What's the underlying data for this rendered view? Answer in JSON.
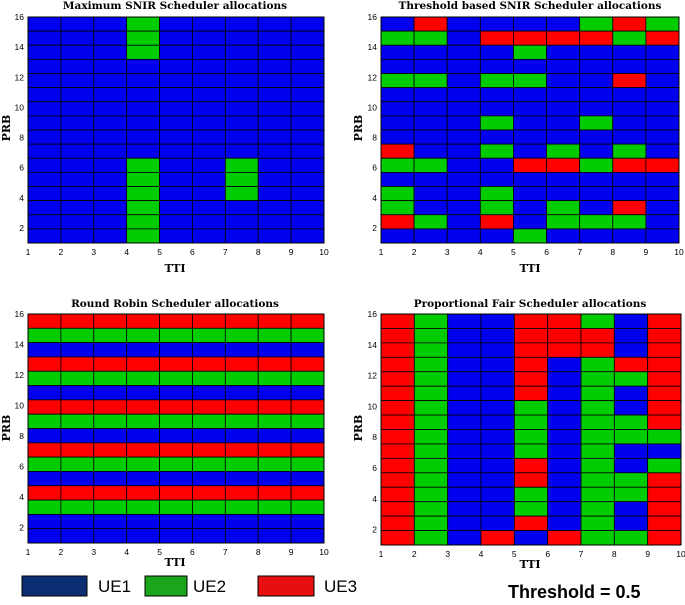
{
  "colors": {
    "UE1": "#0000ee",
    "UE2": "#00cc00",
    "UE3": "#ff0000",
    "grid": "#000000"
  },
  "legend": [
    {
      "label": "UE1",
      "swatch_color": "#0b2e73"
    },
    {
      "label": "UE2",
      "swatch_color": "#1aa51a"
    },
    {
      "label": "UE3",
      "swatch_color": "#e61010"
    }
  ],
  "threshold_text": "Threshold = 0.5",
  "chart_data": [
    {
      "type": "heatmap",
      "title": "Maximum SNIR Scheduler allocations",
      "xlabel": "TTI",
      "ylabel": "PRB",
      "xlim": [
        1,
        10
      ],
      "ylim": [
        1,
        16
      ],
      "xticks": [
        "1",
        "2",
        "3",
        "4",
        "5",
        "6",
        "7",
        "8",
        "9",
        "10"
      ],
      "yticks": [
        "2",
        "4",
        "6",
        "8",
        "10",
        "12",
        "14",
        "16"
      ],
      "legend_keys": [
        "UE1",
        "UE2",
        "UE3"
      ],
      "grid_rows_top_to_bottom": [
        "111211111",
        "111211111",
        "111211111",
        "111111111",
        "111111111",
        "111111111",
        "111111111",
        "111111111",
        "111111111",
        "111111111",
        "111211211",
        "111211211",
        "111211211",
        "111211111",
        "111211111",
        "111211111"
      ]
    },
    {
      "type": "heatmap",
      "title": "Threshold based SNIR Scheduler allocations",
      "xlabel": "TTI",
      "ylabel": "PRB",
      "xlim": [
        1,
        10
      ],
      "ylim": [
        1,
        16
      ],
      "xticks": [
        "1",
        "2",
        "3",
        "4",
        "5",
        "6",
        "7",
        "8",
        "9",
        "10"
      ],
      "yticks": [
        "2",
        "4",
        "6",
        "8",
        "10",
        "12",
        "14",
        "16"
      ],
      "legend_keys": [
        "UE1",
        "UE2",
        "UE3"
      ],
      "grid_rows_top_to_bottom": [
        "131111232",
        "221333323",
        "111121111",
        "111111111",
        "221221131",
        "111111111",
        "111111111",
        "111211211",
        "111111111",
        "311212121",
        "221133233",
        "111111111",
        "211211111",
        "211212131",
        "321312221",
        "111121111"
      ]
    },
    {
      "type": "heatmap",
      "title": "Round Robin Scheduler allocations",
      "xlabel": "TTI",
      "ylabel": "PRB",
      "xlim": [
        1,
        10
      ],
      "ylim": [
        1,
        16
      ],
      "xticks": [
        "1",
        "2",
        "3",
        "4",
        "5",
        "6",
        "7",
        "8",
        "9",
        "10"
      ],
      "yticks": [
        "2",
        "4",
        "6",
        "8",
        "10",
        "12",
        "14",
        "16"
      ],
      "legend_keys": [
        "UE1",
        "UE2",
        "UE3"
      ],
      "grid_rows_top_to_bottom": [
        "333333333",
        "222222222",
        "111111111",
        "333333333",
        "222222222",
        "111111111",
        "333333333",
        "222222222",
        "111111111",
        "333333333",
        "222222222",
        "111111111",
        "333333333",
        "222222222",
        "111111111",
        "111111111"
      ]
    },
    {
      "type": "heatmap",
      "title": "Proportional Fair Scheduler allocations",
      "xlabel": "TTI",
      "ylabel": "PRB",
      "xlim": [
        1,
        10
      ],
      "ylim": [
        1,
        16
      ],
      "xticks": [
        "1",
        "2",
        "3",
        "4",
        "5",
        "6",
        "7",
        "8",
        "9",
        "10"
      ],
      "yticks": [
        "2",
        "4",
        "6",
        "8",
        "10",
        "12",
        "14",
        "16"
      ],
      "legend_keys": [
        "UE1",
        "UE2",
        "UE3"
      ],
      "grid_rows_top_to_bottom": [
        "321133213",
        "321133313",
        "321133313",
        "321131233",
        "321131223",
        "321131213",
        "321121213",
        "321121223",
        "321121222",
        "321121211",
        "321131212",
        "321131223",
        "321121223",
        "321121213",
        "321131213",
        "321313223"
      ]
    }
  ]
}
